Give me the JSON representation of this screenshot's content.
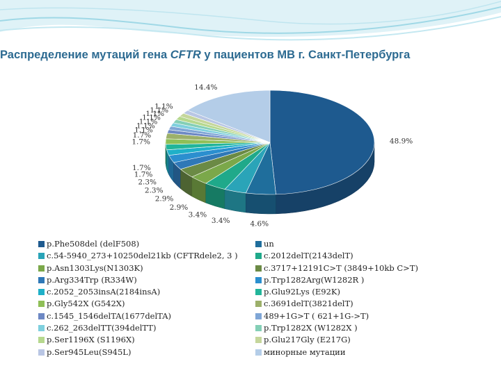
{
  "title": {
    "prefix": "Распределение мутаций гена ",
    "gene": "CFTR",
    "suffix": " у пациентов МВ г. Санкт-Петербурга"
  },
  "chart_data": {
    "type": "pie",
    "title": "Распределение мутаций гена CFTR у пациентов МВ г. Санкт-Петербурга",
    "slices": [
      {
        "label": "p.Phe508del (delF508)",
        "value": 48.9,
        "display": "48.9%",
        "color": "#1e5a8f"
      },
      {
        "label": "un",
        "value": 4.6,
        "display": "4.6%",
        "color": "#1f6e9c"
      },
      {
        "label": "c.54-5940_273+10250del21kb (CFTRdele2, 3 )",
        "value": 3.4,
        "display": "3.4%",
        "color": "#2aa4b8"
      },
      {
        "label": "c.2012delT(2143delT)",
        "value": 3.4,
        "display": "3.4%",
        "color": "#1fa98a"
      },
      {
        "label": "p.Asn1303Lys(N1303K)",
        "value": 2.9,
        "display": "2.9%",
        "color": "#7ba84a"
      },
      {
        "label": "c.3717+12191C>T (3849+10kb C>T)",
        "value": 2.9,
        "display": "2.9%",
        "color": "#6b8a45"
      },
      {
        "label": "p.Arg334Trp (R334W)",
        "value": 2.3,
        "display": "2.3%",
        "color": "#2f78b7"
      },
      {
        "label": "p.Trp1282Arg(W1282R )",
        "value": 2.3,
        "display": "2.3%",
        "color": "#2b8fcf"
      },
      {
        "label": "c.2052_2053insA(2184insA)",
        "value": 1.7,
        "display": "1.7%",
        "color": "#1fb0c8"
      },
      {
        "label": "p.Glu92Lys (E92K)",
        "value": 1.7,
        "display": "1.7%",
        "color": "#22b59a"
      },
      {
        "label": "p.Gly542X (G542X)",
        "value": 1.7,
        "display": "1.7%",
        "color": "#8fbf57"
      },
      {
        "label": "c.3691delT(3821delT)",
        "value": 1.7,
        "display": "1.7%",
        "color": "#9cb06a"
      },
      {
        "label": "c.1545_1546delTA(1677delTA)",
        "value": 1.1,
        "display": "1.1%",
        "color": "#6d88c4"
      },
      {
        "label": "489+1G>T ( 621+1G->T)",
        "value": 1.1,
        "display": "1.1%",
        "color": "#7fa6d6"
      },
      {
        "label": "c.262_263delTT(394delTT)",
        "value": 1.1,
        "display": "1.1%",
        "color": "#7fd0de"
      },
      {
        "label": "p.Trp1282X (W1282X )",
        "value": 1.1,
        "display": "1.1%",
        "color": "#84cfb6"
      },
      {
        "label": "p.Ser1196X (S1196X)",
        "value": 1.1,
        "display": "1.1%",
        "color": "#b6d88e"
      },
      {
        "label": "p.Glu217Gly (E217G)",
        "value": 1.1,
        "display": "1.1%",
        "color": "#c5d69b"
      },
      {
        "label": "p.Ser945Leu(S945L)",
        "value": 1.1,
        "display": "1.1%",
        "color": "#b9c6e4"
      },
      {
        "label": "минорные мутации",
        "value": 14.4,
        "display": "14.4%",
        "color": "#b4cde8"
      }
    ]
  },
  "legend": {
    "left": [
      {
        "label": "p.Phe508del (delF508)",
        "color": "#1e5a8f"
      },
      {
        "label": "c.54-5940_273+10250del21kb (CFTRdele2, 3 )",
        "color": "#2aa4b8"
      },
      {
        "label": "p.Asn1303Lys(N1303K)",
        "color": "#7ba84a"
      },
      {
        "label": "p.Arg334Trp (R334W)",
        "color": "#2f78b7"
      },
      {
        "label": "c.2052_2053insA(2184insA)",
        "color": "#1fb0c8"
      },
      {
        "label": "p.Gly542X (G542X)",
        "color": "#8fbf57"
      },
      {
        "label": "c.1545_1546delTA(1677delTA)",
        "color": "#6d88c4"
      },
      {
        "label": "c.262_263delTT(394delTT)",
        "color": "#7fd0de"
      },
      {
        "label": "p.Ser1196X (S1196X)",
        "color": "#b6d88e"
      },
      {
        "label": "p.Ser945Leu(S945L)",
        "color": "#b9c6e4"
      }
    ],
    "right": [
      {
        "label": "un",
        "color": "#1f6e9c"
      },
      {
        "label": "c.2012delT(2143delT)",
        "color": "#1fa98a"
      },
      {
        "label": "c.3717+12191C>T (3849+10kb C>T)",
        "color": "#6b8a45"
      },
      {
        "label": "p.Trp1282Arg(W1282R )",
        "color": "#2b8fcf"
      },
      {
        "label": "p.Glu92Lys (E92K)",
        "color": "#22b59a"
      },
      {
        "label": "c.3691delT(3821delT)",
        "color": "#9cb06a"
      },
      {
        "label": "489+1G>T ( 621+1G->T)",
        "color": "#7fa6d6"
      },
      {
        "label": "p.Trp1282X (W1282X )",
        "color": "#84cfb6"
      },
      {
        "label": "p.Glu217Gly (E217G)",
        "color": "#c5d69b"
      },
      {
        "label": "минорные мутации",
        "color": "#b4cde8"
      }
    ]
  }
}
